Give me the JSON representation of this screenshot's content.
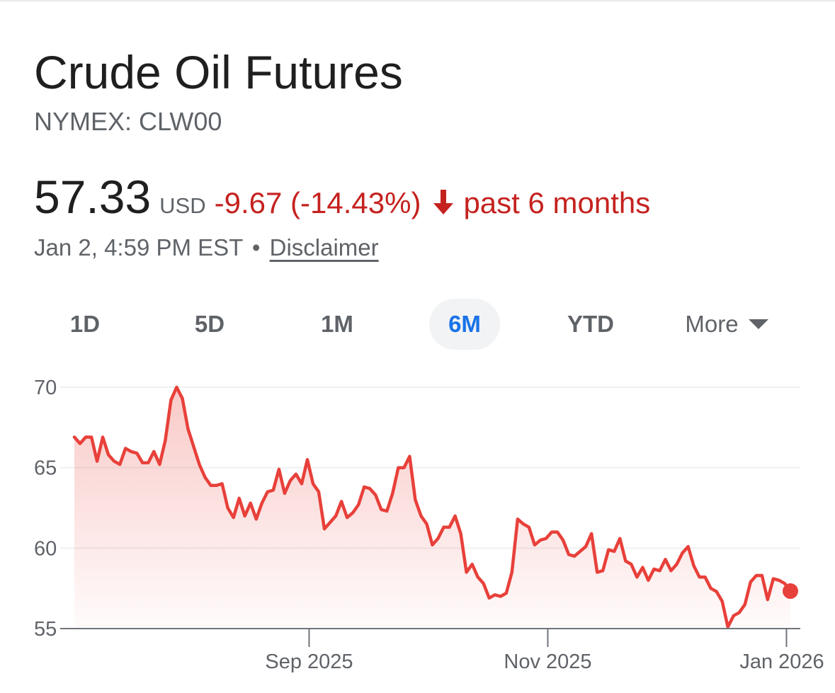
{
  "header": {
    "title": "Crude Oil Futures",
    "exchange": "NYMEX: CLW00",
    "price": "57.33",
    "currency": "USD",
    "change": "-9.67 (-14.43%)",
    "period_label": "past 6 months",
    "timestamp": "Jan 2, 4:59 PM EST",
    "separator": "•",
    "disclaimer": "Disclaimer"
  },
  "tabs": [
    {
      "label": "1D",
      "active": false
    },
    {
      "label": "5D",
      "active": false
    },
    {
      "label": "1M",
      "active": false
    },
    {
      "label": "6M",
      "active": true
    },
    {
      "label": "YTD",
      "active": false
    },
    {
      "label": "More",
      "active": false
    }
  ],
  "colors": {
    "line": "#e8403a",
    "negative": "#c5221f",
    "active_tab": "#1a73e8"
  },
  "chart_data": {
    "type": "area",
    "y_ticks": [
      55,
      60,
      65,
      70
    ],
    "ylim": [
      55,
      70
    ],
    "x_ticks": [
      {
        "label": "Sep 2025",
        "date": "2025-09-01"
      },
      {
        "label": "Nov 2025",
        "date": "2025-11-01"
      },
      {
        "label": "Jan 2026",
        "date": "2026-01-01"
      }
    ],
    "grid": true,
    "series": [
      {
        "values": [
          66.9,
          66.5,
          66.9,
          66.9,
          65.4,
          66.9,
          65.8,
          65.4,
          65.2,
          66.2,
          66.0,
          65.9,
          65.3,
          65.3,
          66.0,
          65.2,
          66.7,
          69.2,
          70.0,
          69.3,
          67.4,
          66.3,
          65.2,
          64.4,
          63.9,
          63.9,
          64.0,
          62.5,
          61.9,
          63.1,
          62.0,
          62.8,
          61.8,
          62.8,
          63.5,
          63.6,
          64.9,
          63.4,
          64.2,
          64.6,
          64.0,
          65.5,
          64.0,
          63.5,
          61.2,
          61.6,
          62.0,
          62.9,
          61.9,
          62.2,
          62.7,
          63.8,
          63.7,
          63.3,
          62.4,
          62.3,
          63.4,
          65.0,
          65.0,
          65.7,
          63.0,
          62.0,
          61.5,
          60.2,
          60.6,
          61.3,
          61.3,
          62.0,
          60.9,
          58.5,
          59.0,
          58.2,
          57.8,
          56.9,
          57.1,
          57.0,
          57.2,
          58.5,
          61.8,
          61.5,
          61.3,
          60.2,
          60.5,
          60.6,
          61.0,
          61.0,
          60.5,
          59.6,
          59.5,
          59.8,
          60.1,
          60.9,
          58.5,
          58.6,
          59.9,
          59.8,
          60.6,
          59.2,
          59.0,
          58.2,
          58.8,
          58.0,
          58.7,
          58.6,
          59.3,
          58.6,
          59.0,
          59.7,
          60.1,
          58.9,
          58.2,
          58.2,
          57.5,
          57.3,
          56.7,
          55.1,
          55.8,
          56.0,
          56.5,
          57.9,
          58.3,
          58.3,
          56.8,
          58.1,
          58.0,
          57.8,
          57.33
        ]
      }
    ]
  }
}
